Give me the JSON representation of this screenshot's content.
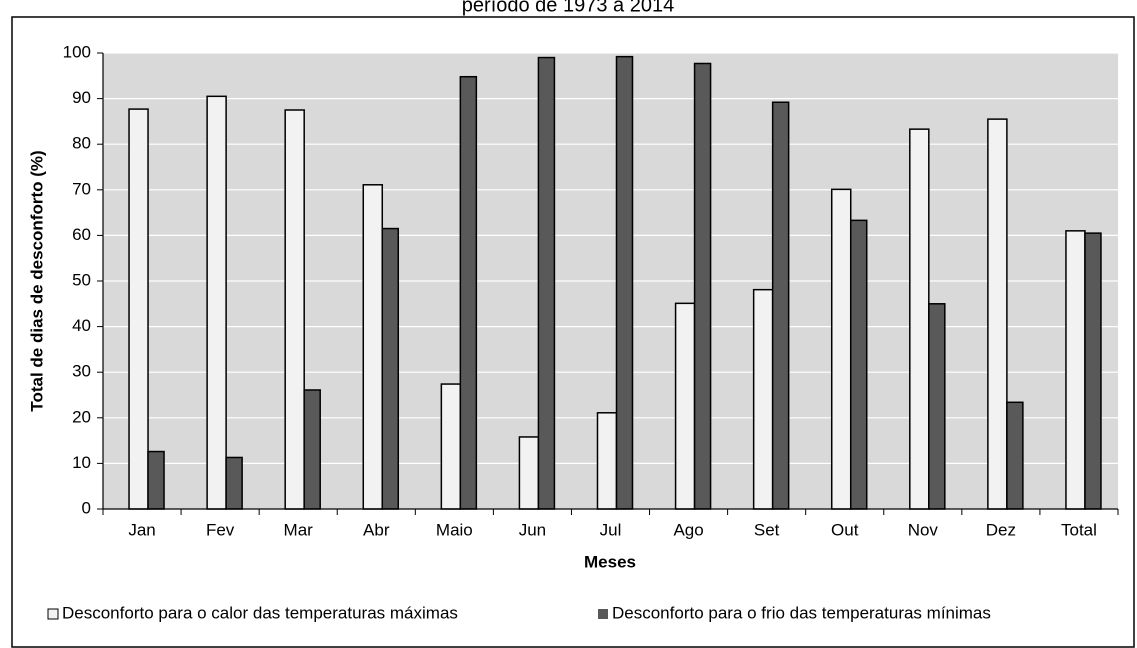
{
  "chart_data": {
    "type": "bar",
    "title": "período de 1973 a 2014",
    "x_label": "Meses",
    "y_label": "Total de dias de desconforto (%)",
    "categories": [
      "Jan",
      "Fev",
      "Mar",
      "Abr",
      "Maio",
      "Jun",
      "Jul",
      "Ago",
      "Set",
      "Out",
      "Nov",
      "Dez",
      "Total"
    ],
    "series": [
      {
        "name": "Desconforto para o calor das temperaturas máximas",
        "color": "#f2f2f2",
        "values": [
          87.7,
          90.5,
          87.5,
          71.1,
          27.4,
          15.8,
          21.1,
          45.1,
          48.1,
          70.1,
          83.3,
          85.5,
          61.0
        ]
      },
      {
        "name": "Desconforto para o frio das temperaturas mínimas",
        "color": "#595959",
        "values": [
          12.6,
          11.3,
          26.1,
          61.5,
          94.8,
          99.0,
          99.2,
          97.7,
          89.2,
          63.3,
          45.0,
          23.4,
          60.5
        ]
      }
    ],
    "ylim": [
      0,
      100
    ],
    "yticks": [
      0,
      10,
      20,
      30,
      40,
      50,
      60,
      70,
      80,
      90,
      100
    ],
    "grid": true,
    "legend": "bottom"
  }
}
